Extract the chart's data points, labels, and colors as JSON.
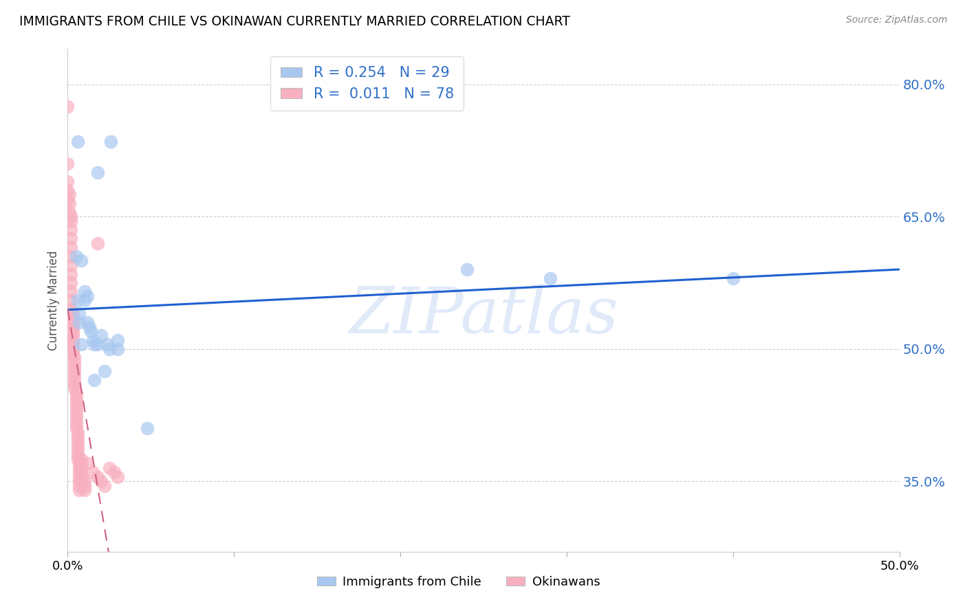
{
  "title": "IMMIGRANTS FROM CHILE VS OKINAWAN CURRENTLY MARRIED CORRELATION CHART",
  "source": "Source: ZipAtlas.com",
  "ylabel": "Currently Married",
  "watermark": "ZIPatlas",
  "xmin": 0.0,
  "xmax": 0.5,
  "ymin": 0.27,
  "ymax": 0.84,
  "yticks": [
    0.35,
    0.5,
    0.65,
    0.8
  ],
  "ytick_labels": [
    "35.0%",
    "50.0%",
    "65.0%",
    "80.0%"
  ],
  "xticks": [
    0.0,
    0.1,
    0.2,
    0.3,
    0.4,
    0.5
  ],
  "xtick_labels": [
    "0.0%",
    "",
    "",
    "",
    "",
    "50.0%"
  ],
  "blue_R": 0.254,
  "blue_N": 29,
  "pink_R": 0.011,
  "pink_N": 78,
  "blue_color": "#a8c8f0",
  "pink_color": "#f8b0c0",
  "trendline_blue_color": "#2060d0",
  "trendline_pink_color": "#d06080",
  "legend_label_blue": "Immigrants from Chile",
  "legend_label_pink": "Okinawans",
  "blue_x": [
    0.006,
    0.018,
    0.026,
    0.005,
    0.008,
    0.01,
    0.012,
    0.006,
    0.01,
    0.007,
    0.007,
    0.012,
    0.013,
    0.014,
    0.015,
    0.008,
    0.016,
    0.018,
    0.02,
    0.024,
    0.025,
    0.03,
    0.03,
    0.016,
    0.022,
    0.048,
    0.24,
    0.29,
    0.4
  ],
  "blue_y": [
    0.735,
    0.7,
    0.735,
    0.605,
    0.6,
    0.565,
    0.56,
    0.555,
    0.555,
    0.54,
    0.53,
    0.53,
    0.525,
    0.52,
    0.51,
    0.505,
    0.505,
    0.505,
    0.515,
    0.505,
    0.5,
    0.5,
    0.51,
    0.465,
    0.475,
    0.41,
    0.59,
    0.58,
    0.58
  ],
  "pink_x": [
    0.0,
    0.0,
    0.0,
    0.0,
    0.0,
    0.001,
    0.001,
    0.001,
    0.002,
    0.002,
    0.002,
    0.002,
    0.002,
    0.002,
    0.002,
    0.002,
    0.002,
    0.002,
    0.002,
    0.002,
    0.003,
    0.003,
    0.003,
    0.003,
    0.003,
    0.003,
    0.003,
    0.003,
    0.003,
    0.003,
    0.004,
    0.004,
    0.004,
    0.004,
    0.004,
    0.004,
    0.004,
    0.004,
    0.005,
    0.005,
    0.005,
    0.005,
    0.005,
    0.005,
    0.005,
    0.005,
    0.005,
    0.006,
    0.006,
    0.006,
    0.006,
    0.006,
    0.006,
    0.006,
    0.007,
    0.007,
    0.007,
    0.007,
    0.007,
    0.007,
    0.007,
    0.008,
    0.008,
    0.008,
    0.008,
    0.009,
    0.01,
    0.01,
    0.01,
    0.012,
    0.015,
    0.018,
    0.02,
    0.022,
    0.025,
    0.028,
    0.03,
    0.018
  ],
  "pink_y": [
    0.775,
    0.71,
    0.69,
    0.68,
    0.67,
    0.675,
    0.665,
    0.655,
    0.65,
    0.645,
    0.635,
    0.625,
    0.615,
    0.605,
    0.595,
    0.585,
    0.575,
    0.565,
    0.555,
    0.545,
    0.54,
    0.535,
    0.53,
    0.525,
    0.52,
    0.515,
    0.51,
    0.505,
    0.5,
    0.495,
    0.49,
    0.485,
    0.48,
    0.475,
    0.47,
    0.465,
    0.46,
    0.455,
    0.45,
    0.445,
    0.44,
    0.435,
    0.43,
    0.425,
    0.42,
    0.415,
    0.41,
    0.405,
    0.4,
    0.395,
    0.39,
    0.385,
    0.38,
    0.375,
    0.37,
    0.365,
    0.36,
    0.355,
    0.35,
    0.345,
    0.34,
    0.375,
    0.37,
    0.365,
    0.36,
    0.355,
    0.35,
    0.345,
    0.34,
    0.37,
    0.36,
    0.355,
    0.35,
    0.345,
    0.365,
    0.36,
    0.355,
    0.62
  ]
}
